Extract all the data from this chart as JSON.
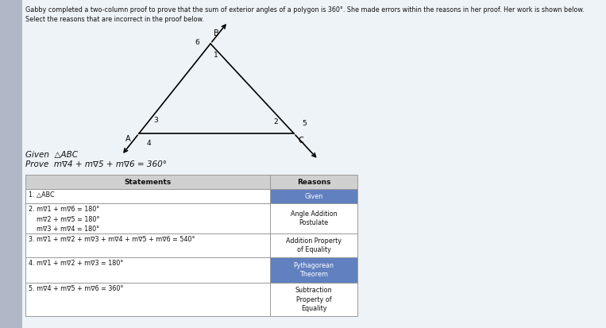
{
  "title_text": "Gabby completed a two-column proof to prove that the sum of exterior angles of a polygon is 360°. She made errors within the reasons in her proof. Her work is shown below.",
  "subtitle_text": "Select the reasons that are incorrect in the proof below.",
  "given_text": "Given  △ABC",
  "prove_text": "Prove  m∇4 + m∇5 + m∇6 = 360°",
  "col_header_statements": "Statements",
  "col_header_reasons": "Reasons",
  "rows": [
    {
      "num": "1.",
      "statement": " △ABC",
      "reason": "Given",
      "reason_highlight": true
    },
    {
      "num": "2.",
      "statement": " m∇1 + m∇6 = 180°\n    m∇2 + m∇5 = 180°\n    m∇3 + m∇4 = 180°",
      "reason": "Angle Addition\nPostulate",
      "reason_highlight": false
    },
    {
      "num": "3.",
      "statement": " m∇1 + m∇2 + m∇3 + m∇4 + m∇5 + m∇6 = 540°",
      "reason": "Addition Property\nof Equality",
      "reason_highlight": false
    },
    {
      "num": "4.",
      "statement": " m∇1 + m∇2 + m∇3 = 180°",
      "reason": "Pythagorean\nTheorem",
      "reason_highlight": true
    },
    {
      "num": "5.",
      "statement": " m∇4 + m∇5 + m∇6 = 360°",
      "reason": "Subtraction\nProperty of\nEquality",
      "reason_highlight": false
    }
  ],
  "left_strip_color": "#b0b8c8",
  "bg_color": "#dde8f0",
  "tri_bg_color": "#e8eef4",
  "table_bg": "#ffffff",
  "header_bg": "#d0d0d0",
  "highlight_color": "#6080c0",
  "highlight_text_color": "#ffffff",
  "border_color": "#999999",
  "text_color": "#111111",
  "angle_sym": "∠"
}
